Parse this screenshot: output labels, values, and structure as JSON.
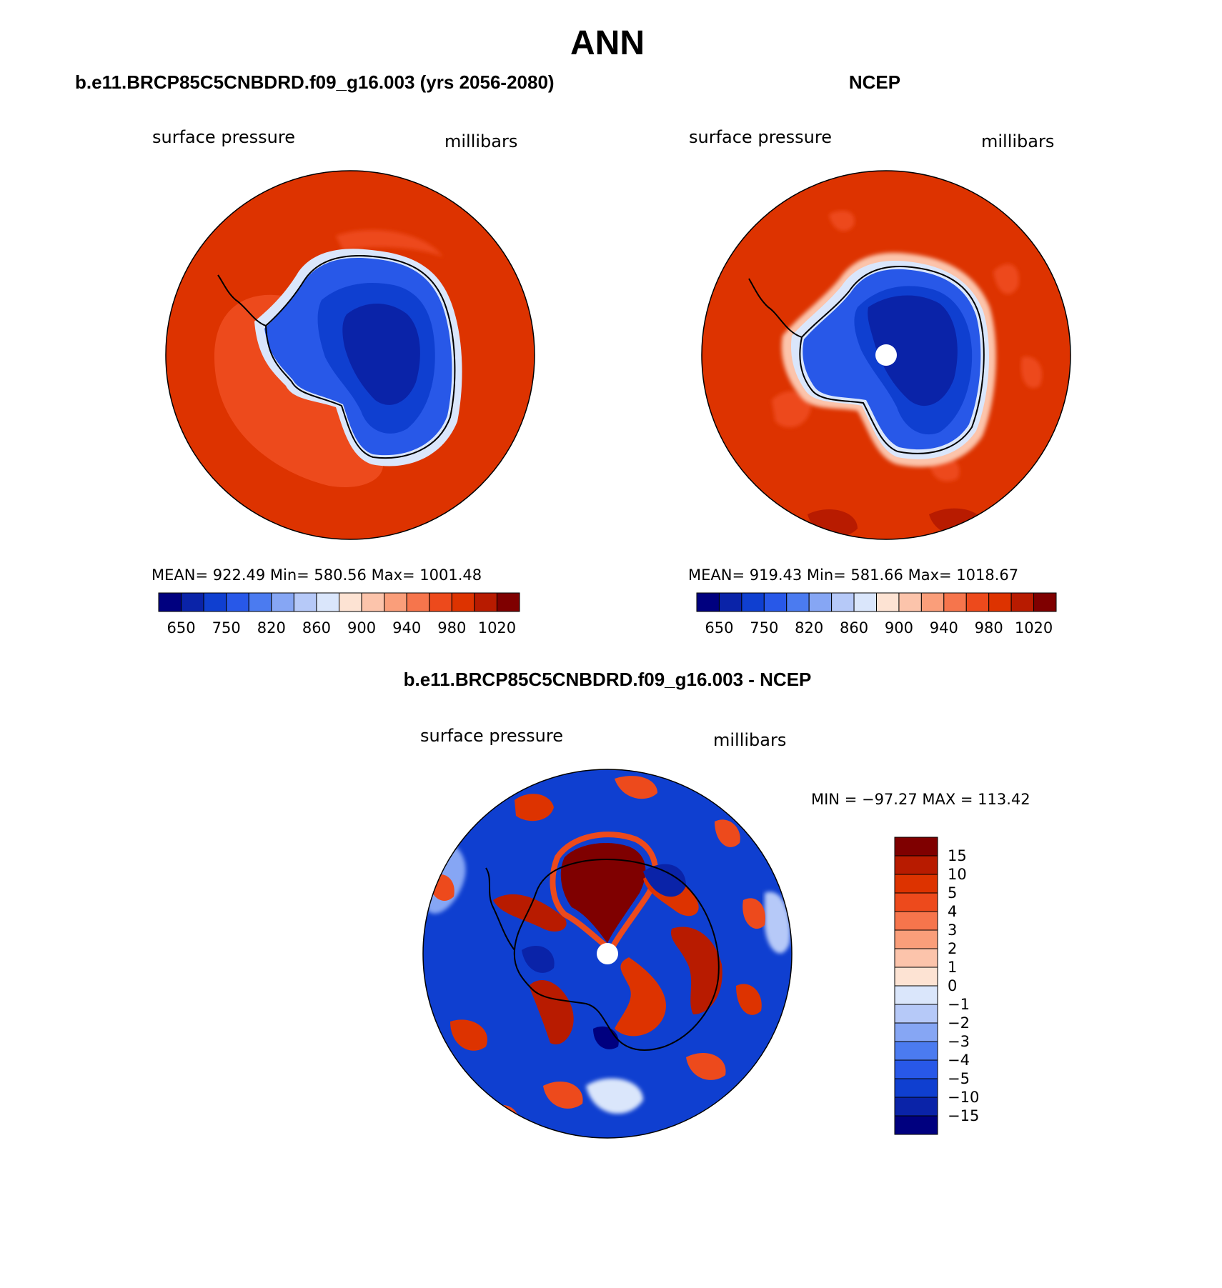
{
  "title": "ANN",
  "panels": [
    {
      "heading": "b.e11.BRCP85C5CNBDRD.f09_g16.003 (yrs 2056-2080)",
      "variable": "surface pressure",
      "units": "millibars",
      "stats": "MEAN= 922.49   Min= 580.56   Max= 1001.48",
      "colorbar_labels": [
        "650",
        "750",
        "820",
        "860",
        "900",
        "940",
        "980",
        "1020"
      ],
      "pole_hole": false
    },
    {
      "heading": "NCEP",
      "variable": "surface pressure",
      "units": "millibars",
      "stats": "MEAN= 919.43   Min= 581.66   Max= 1018.67",
      "colorbar_labels": [
        "650",
        "750",
        "820",
        "860",
        "900",
        "940",
        "980",
        "1020"
      ],
      "pole_hole": true
    }
  ],
  "difference": {
    "heading": "b.e11.BRCP85C5CNBDRD.f09_g16.003 - NCEP",
    "variable": "surface pressure",
    "units": "millibars",
    "stats": "MIN = −97.27 MAX = 113.42",
    "colorbar_labels": [
      "15",
      "10",
      "5",
      "4",
      "3",
      "2",
      "1",
      "0",
      "−1",
      "−2",
      "−3",
      "−4",
      "−5",
      "−10",
      "−15"
    ]
  },
  "colors": {
    "abs_scale": [
      "#00007f",
      "#0a23a8",
      "#0f3fd0",
      "#2858e8",
      "#4b7bf0",
      "#86a6f4",
      "#b6c9f8",
      "#dae6fb",
      "#fde3d3",
      "#fcc4ab",
      "#fa9e7a",
      "#f6754c",
      "#ed4a1c",
      "#dd3300",
      "#b81b00",
      "#7f0000"
    ],
    "diff_scale": [
      "#7f0000",
      "#b81b00",
      "#dd3300",
      "#ed4a1c",
      "#f6754c",
      "#fa9e7a",
      "#fcc4ab",
      "#fde3d3",
      "#dae6fb",
      "#b6c9f8",
      "#86a6f4",
      "#4b7bf0",
      "#2858e8",
      "#0f3fd0",
      "#0a23a8",
      "#00007f"
    ],
    "ocean_high": "#dd3300",
    "ice_low": "#0a23a8"
  }
}
